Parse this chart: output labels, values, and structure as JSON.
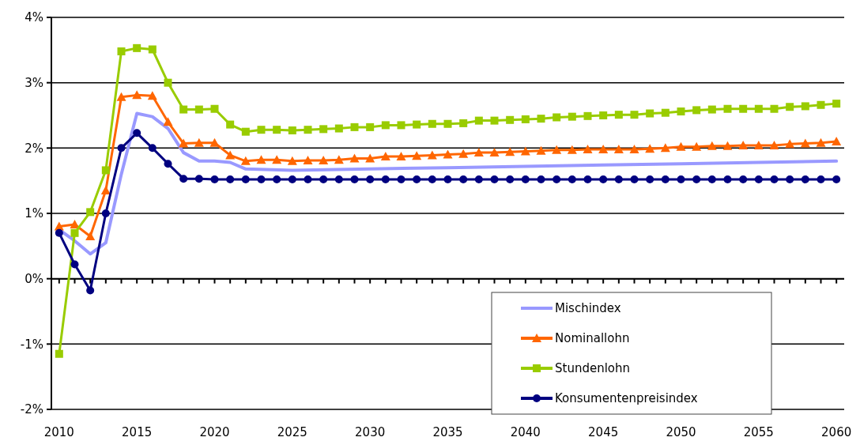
{
  "chart_data": {
    "type": "line",
    "xlim": [
      2009.5,
      2060.5
    ],
    "xticks": [
      2010,
      2015,
      2020,
      2025,
      2030,
      2035,
      2040,
      2045,
      2050,
      2055,
      2060
    ],
    "ylim": [
      -2,
      4
    ],
    "yticks": [
      {
        "value": -2,
        "label": "-2%"
      },
      {
        "value": -1,
        "label": "-1%"
      },
      {
        "value": 0,
        "label": "0%"
      },
      {
        "value": 1,
        "label": "1%"
      },
      {
        "value": 2,
        "label": "2%"
      },
      {
        "value": 3,
        "label": "3%"
      },
      {
        "value": 4,
        "label": "4%"
      }
    ],
    "grid": "y",
    "legend": "bottom right",
    "series": [
      {
        "name": "Mischindex",
        "color": "#9999ff",
        "marker": "none",
        "x": [
          2010,
          2011,
          2012,
          2013,
          2014,
          2015,
          2016,
          2017,
          2018,
          2019,
          2020,
          2021,
          2022,
          2025,
          2030,
          2035,
          2040,
          2045,
          2050,
          2055,
          2060
        ],
        "values": [
          0.75,
          0.58,
          0.38,
          0.55,
          1.6,
          2.53,
          2.48,
          2.3,
          1.93,
          1.8,
          1.8,
          1.78,
          1.68,
          1.66,
          1.68,
          1.7,
          1.72,
          1.74,
          1.76,
          1.78,
          1.8
        ]
      },
      {
        "name": "Nominallohn",
        "color": "#ff6600",
        "marker": "triangle",
        "x": [
          2010,
          2011,
          2012,
          2013,
          2014,
          2015,
          2016,
          2017,
          2018,
          2019,
          2020,
          2021,
          2022,
          2023,
          2024,
          2025,
          2026,
          2027,
          2028,
          2029,
          2030,
          2031,
          2032,
          2033,
          2034,
          2035,
          2036,
          2037,
          2038,
          2039,
          2040,
          2041,
          2042,
          2043,
          2044,
          2045,
          2046,
          2047,
          2048,
          2049,
          2050,
          2051,
          2052,
          2053,
          2054,
          2055,
          2056,
          2057,
          2058,
          2059,
          2060
        ],
        "values": [
          0.8,
          0.83,
          0.65,
          1.35,
          2.78,
          2.81,
          2.8,
          2.4,
          2.07,
          2.08,
          2.08,
          1.89,
          1.8,
          1.82,
          1.82,
          1.8,
          1.81,
          1.81,
          1.82,
          1.84,
          1.84,
          1.87,
          1.87,
          1.88,
          1.89,
          1.9,
          1.91,
          1.93,
          1.93,
          1.94,
          1.95,
          1.96,
          1.97,
          1.97,
          1.98,
          1.98,
          1.98,
          1.98,
          1.99,
          2.0,
          2.02,
          2.02,
          2.03,
          2.03,
          2.04,
          2.04,
          2.04,
          2.06,
          2.07,
          2.08,
          2.1
        ]
      },
      {
        "name": "Stundenlohn",
        "color": "#99cc00",
        "marker": "square",
        "x": [
          2010,
          2011,
          2012,
          2013,
          2014,
          2015,
          2016,
          2017,
          2018,
          2019,
          2020,
          2021,
          2022,
          2023,
          2024,
          2025,
          2026,
          2027,
          2028,
          2029,
          2030,
          2031,
          2032,
          2033,
          2034,
          2035,
          2036,
          2037,
          2038,
          2039,
          2040,
          2041,
          2042,
          2043,
          2044,
          2045,
          2046,
          2047,
          2048,
          2049,
          2050,
          2051,
          2052,
          2053,
          2054,
          2055,
          2056,
          2057,
          2058,
          2059,
          2060
        ],
        "values": [
          -1.15,
          0.7,
          1.02,
          1.66,
          3.48,
          3.53,
          3.51,
          3.0,
          2.59,
          2.59,
          2.6,
          2.36,
          2.25,
          2.28,
          2.28,
          2.27,
          2.28,
          2.29,
          2.3,
          2.32,
          2.32,
          2.35,
          2.35,
          2.36,
          2.37,
          2.37,
          2.38,
          2.42,
          2.42,
          2.43,
          2.44,
          2.45,
          2.47,
          2.48,
          2.49,
          2.5,
          2.51,
          2.51,
          2.53,
          2.54,
          2.56,
          2.58,
          2.59,
          2.6,
          2.6,
          2.6,
          2.6,
          2.63,
          2.64,
          2.66,
          2.68
        ]
      },
      {
        "name": "Konsumentenpreisindex",
        "color": "#000080",
        "marker": "circle",
        "x": [
          2010,
          2011,
          2012,
          2013,
          2014,
          2015,
          2016,
          2017,
          2018,
          2019,
          2020,
          2021,
          2022,
          2023,
          2024,
          2025,
          2026,
          2027,
          2028,
          2029,
          2030,
          2031,
          2032,
          2033,
          2034,
          2035,
          2036,
          2037,
          2038,
          2039,
          2040,
          2041,
          2042,
          2043,
          2044,
          2045,
          2046,
          2047,
          2048,
          2049,
          2050,
          2051,
          2052,
          2053,
          2054,
          2055,
          2056,
          2057,
          2058,
          2059,
          2060
        ],
        "values": [
          0.7,
          0.22,
          -0.18,
          1.0,
          2.0,
          2.23,
          2.0,
          1.76,
          1.53,
          1.53,
          1.52,
          1.52,
          1.52,
          1.52,
          1.52,
          1.52,
          1.52,
          1.52,
          1.52,
          1.52,
          1.52,
          1.52,
          1.52,
          1.52,
          1.52,
          1.52,
          1.52,
          1.52,
          1.52,
          1.52,
          1.52,
          1.52,
          1.52,
          1.52,
          1.52,
          1.52,
          1.52,
          1.52,
          1.52,
          1.52,
          1.52,
          1.52,
          1.52,
          1.52,
          1.52,
          1.52,
          1.52,
          1.52,
          1.52,
          1.52,
          1.52
        ]
      }
    ]
  }
}
